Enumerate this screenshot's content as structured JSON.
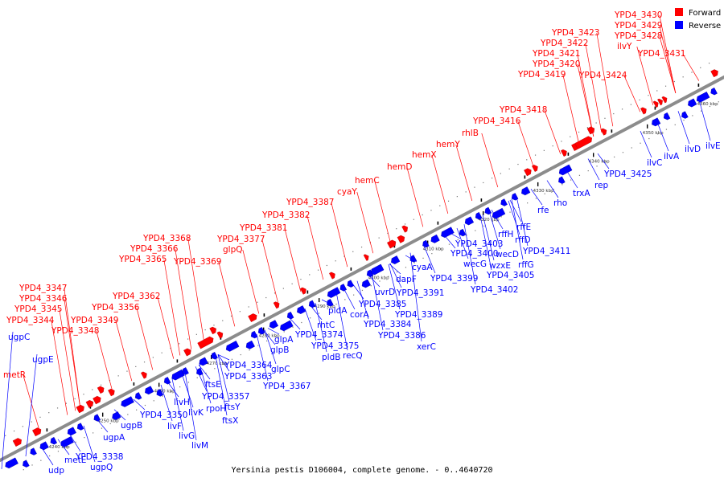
{
  "colors": {
    "forward": "#ff0000",
    "reverse": "#0000ff",
    "backbone": "#8c8c8c"
  },
  "legend": {
    "forward": "Forward",
    "reverse": "Reverse"
  },
  "caption": "Yersinia pestis D106004, complete genome. - 0..4640720",
  "ticks": [
    "4240 kbp",
    "4250 kbp",
    "4260 kbp",
    "4270 kbp",
    "4280 kbp",
    "4290 kbp",
    "4300 kbp",
    "4310 kbp",
    "4320 kbp",
    "4330 kbp",
    "4340 kbp",
    "4350 kbp",
    "4360 kbp"
  ],
  "forward_labels": [
    "metR",
    "YPD4_3344",
    "YPD4_3345",
    "YPD4_3346",
    "YPD4_3347",
    "YPD4_3348",
    "YPD4_3349",
    "YPD4_3356",
    "YPD4_3362",
    "YPD4_3365",
    "YPD4_3366",
    "YPD4_3368",
    "YPD4_3369",
    "glpQ",
    "YPD4_3377",
    "YPD4_3381",
    "YPD4_3382",
    "YPD4_3387",
    "cyaY",
    "hemC",
    "hemD",
    "hemX",
    "hemY",
    "rhlB",
    "YPD4_3416",
    "YPD4_3418",
    "YPD4_3419",
    "YPD4_3420",
    "YPD4_3421",
    "YPD4_3422",
    "YPD4_3423",
    "YPD4_3424",
    "ilvY",
    "YPD4_3428",
    "YPD4_3429",
    "YPD4_3430",
    "YPD4_3431"
  ],
  "reverse_labels": [
    "ugpC",
    "ugpE",
    "udp",
    "metE",
    "YPD4_3338",
    "ugpQ",
    "ugpA",
    "ugpB",
    "YPD4_3350",
    "livF",
    "livG",
    "livM",
    "livH",
    "livK",
    "rpoH",
    "ftsY",
    "ftsX",
    "YPD4_3357",
    "ftsE",
    "YPD4_3363",
    "YPD4_3364",
    "YPD4_3367",
    "glpC",
    "glpB",
    "glpA",
    "YPD4_3374",
    "YPD4_3375",
    "rhtC",
    "pldB",
    "recQ",
    "pldA",
    "corA",
    "YPD4_3384",
    "YPD4_3386",
    "xerC",
    "YPD4_3385",
    "uvrD",
    "YPD4_3389",
    "YPD4_3391",
    "dapF",
    "cyaA",
    "YPD4_3399",
    "YPD4_3400",
    "YPD4_3402",
    "wecG",
    "YPD4_3403",
    "wzxE",
    "YPD4_3405",
    "wecD",
    "rffG",
    "rffH",
    "rffD",
    "YPD4_3411",
    "rffE",
    "rfe",
    "rho",
    "trxA",
    "rep",
    "YPD4_3425",
    "ilvC",
    "ilvA",
    "ilvD",
    "ilvE"
  ]
}
